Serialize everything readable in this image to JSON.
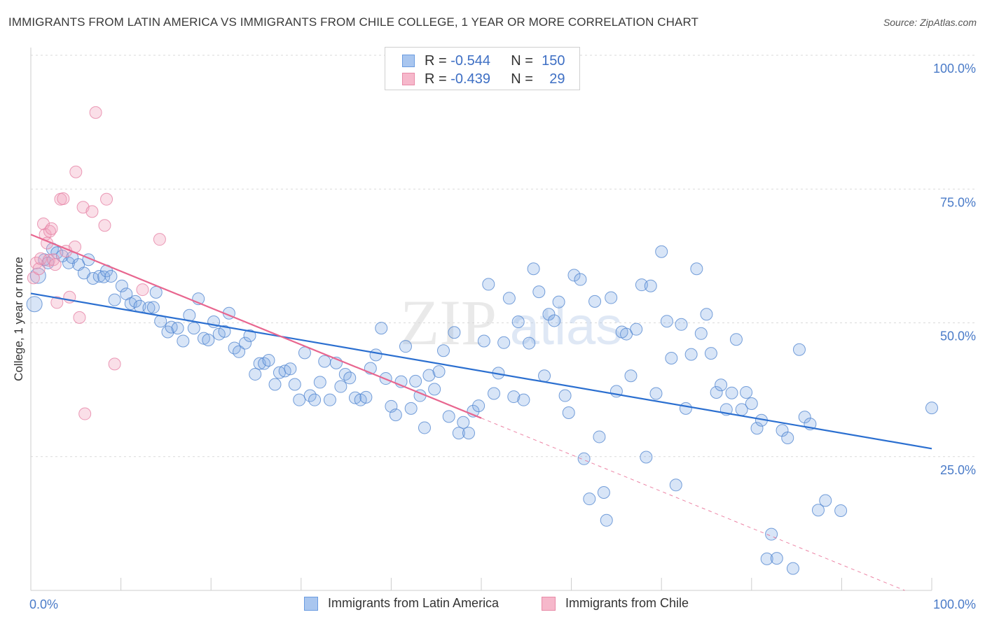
{
  "title": "IMMIGRANTS FROM LATIN AMERICA VS IMMIGRANTS FROM CHILE COLLEGE, 1 YEAR OR MORE CORRELATION CHART",
  "source": "Source: ZipAtlas.com",
  "watermark": {
    "zip": "ZIP",
    "atlas": "atlas"
  },
  "legend_top": [
    {
      "r_label": "R =",
      "r_value": "-0.544",
      "n_label": "N =",
      "n_value": "150",
      "color": "#a9c6ef",
      "stroke": "#6a9be0"
    },
    {
      "r_label": "R =",
      "r_value": "-0.439",
      "n_label": "N =",
      "n_value": "29",
      "color": "#f6b8cb",
      "stroke": "#e88aa7"
    }
  ],
  "chart_data": {
    "type": "scatter",
    "title": "IMMIGRANTS FROM LATIN AMERICA VS IMMIGRANTS FROM CHILE COLLEGE, 1 YEAR OR MORE CORRELATION CHART",
    "xlabel": "",
    "ylabel": "College, 1 year or more",
    "xlim": [
      0,
      100
    ],
    "ylim": [
      0,
      100
    ],
    "x_tick_labels": [
      "0.0%",
      "100.0%"
    ],
    "y_tick_labels": [
      "100.0%",
      "75.0%",
      "50.0%",
      "25.0%"
    ],
    "y_ticks": [
      100,
      75,
      50,
      25
    ],
    "grid": true,
    "legend_position": "bottom",
    "series": [
      {
        "name": "Immigrants from Latin America",
        "color": "#7fa9e4",
        "line_color": "#2b6fd0",
        "trend": {
          "x": [
            0,
            100
          ],
          "y": [
            55.5,
            26.5
          ]
        },
        "points": [
          [
            0.4,
            53.5
          ],
          [
            0.8,
            58.8
          ],
          [
            1.5,
            61.8
          ],
          [
            1.9,
            61.2
          ],
          [
            2.4,
            63.8
          ],
          [
            2.9,
            63.1
          ],
          [
            3.5,
            62.5
          ],
          [
            4.2,
            61.2
          ],
          [
            4.6,
            62.2
          ],
          [
            5.3,
            60.9
          ],
          [
            5.9,
            59.3
          ],
          [
            6.4,
            61.8
          ],
          [
            6.9,
            58.3
          ],
          [
            7.6,
            58.7
          ],
          [
            8.1,
            58.6
          ],
          [
            8.4,
            59.7
          ],
          [
            8.9,
            58.7
          ],
          [
            9.3,
            54.3
          ],
          [
            10.1,
            56.9
          ],
          [
            10.6,
            55.4
          ],
          [
            11.1,
            53.6
          ],
          [
            11.6,
            54.0
          ],
          [
            12.1,
            53.1
          ],
          [
            13.1,
            52.8
          ],
          [
            13.6,
            52.9
          ],
          [
            13.9,
            55.7
          ],
          [
            14.4,
            50.3
          ],
          [
            15.2,
            48.3
          ],
          [
            15.6,
            49.2
          ],
          [
            16.3,
            49.0
          ],
          [
            16.9,
            46.6
          ],
          [
            17.6,
            51.4
          ],
          [
            18.1,
            49.0
          ],
          [
            18.6,
            54.5
          ],
          [
            19.2,
            47.1
          ],
          [
            19.7,
            46.8
          ],
          [
            20.3,
            50.2
          ],
          [
            20.9,
            47.9
          ],
          [
            21.5,
            48.4
          ],
          [
            22.0,
            51.8
          ],
          [
            22.6,
            45.3
          ],
          [
            23.1,
            44.6
          ],
          [
            23.8,
            46.2
          ],
          [
            24.3,
            47.6
          ],
          [
            24.9,
            40.4
          ],
          [
            25.4,
            42.4
          ],
          [
            25.9,
            42.4
          ],
          [
            26.4,
            43.0
          ],
          [
            27.1,
            38.5
          ],
          [
            27.6,
            40.7
          ],
          [
            28.2,
            41.0
          ],
          [
            28.8,
            41.4
          ],
          [
            29.3,
            38.5
          ],
          [
            29.8,
            35.6
          ],
          [
            30.4,
            44.4
          ],
          [
            31.0,
            36.4
          ],
          [
            31.5,
            35.6
          ],
          [
            32.1,
            38.9
          ],
          [
            32.6,
            42.8
          ],
          [
            33.2,
            35.6
          ],
          [
            33.9,
            42.5
          ],
          [
            34.4,
            38.1
          ],
          [
            34.9,
            40.4
          ],
          [
            35.4,
            39.7
          ],
          [
            36.0,
            36.0
          ],
          [
            36.6,
            35.6
          ],
          [
            37.2,
            36.1
          ],
          [
            37.7,
            41.5
          ],
          [
            38.3,
            44.0
          ],
          [
            38.9,
            49.0
          ],
          [
            39.4,
            39.6
          ],
          [
            40.0,
            34.4
          ],
          [
            40.5,
            32.8
          ],
          [
            41.1,
            39.0
          ],
          [
            41.6,
            45.6
          ],
          [
            42.2,
            34.0
          ],
          [
            42.7,
            39.1
          ],
          [
            43.2,
            36.4
          ],
          [
            43.7,
            30.4
          ],
          [
            44.2,
            40.2
          ],
          [
            44.8,
            37.6
          ],
          [
            45.3,
            40.9
          ],
          [
            45.8,
            44.8
          ],
          [
            46.4,
            32.5
          ],
          [
            47.0,
            48.2
          ],
          [
            47.5,
            29.4
          ],
          [
            48.0,
            31.4
          ],
          [
            48.6,
            29.4
          ],
          [
            49.1,
            33.5
          ],
          [
            49.7,
            34.5
          ],
          [
            50.3,
            46.6
          ],
          [
            50.8,
            57.2
          ],
          [
            51.4,
            36.8
          ],
          [
            51.9,
            40.6
          ],
          [
            52.5,
            46.3
          ],
          [
            53.1,
            54.6
          ],
          [
            53.6,
            36.2
          ],
          [
            54.1,
            50.2
          ],
          [
            54.7,
            35.6
          ],
          [
            55.3,
            46.2
          ],
          [
            55.8,
            60.1
          ],
          [
            56.4,
            55.8
          ],
          [
            57.0,
            40.1
          ],
          [
            57.5,
            51.6
          ],
          [
            58.1,
            50.4
          ],
          [
            58.6,
            53.9
          ],
          [
            59.3,
            36.4
          ],
          [
            59.7,
            33.2
          ],
          [
            60.3,
            58.9
          ],
          [
            61.0,
            58.1
          ],
          [
            61.4,
            24.6
          ],
          [
            62.0,
            17.1
          ],
          [
            62.6,
            54.0
          ],
          [
            63.1,
            28.7
          ],
          [
            63.6,
            18.3
          ],
          [
            63.9,
            13.1
          ],
          [
            64.4,
            54.7
          ],
          [
            65.0,
            37.2
          ],
          [
            65.6,
            48.3
          ],
          [
            66.1,
            47.9
          ],
          [
            66.6,
            40.1
          ],
          [
            67.2,
            48.8
          ],
          [
            67.8,
            57.1
          ],
          [
            68.3,
            24.9
          ],
          [
            68.8,
            56.9
          ],
          [
            69.4,
            36.8
          ],
          [
            70.0,
            63.3
          ],
          [
            70.6,
            50.3
          ],
          [
            71.1,
            43.4
          ],
          [
            71.6,
            19.7
          ],
          [
            72.2,
            49.7
          ],
          [
            72.7,
            34.0
          ],
          [
            73.3,
            44.1
          ],
          [
            73.9,
            60.1
          ],
          [
            74.4,
            48.0
          ],
          [
            75.0,
            51.6
          ],
          [
            75.5,
            44.3
          ],
          [
            76.1,
            37.0
          ],
          [
            76.6,
            38.4
          ],
          [
            77.2,
            33.8
          ],
          [
            77.8,
            36.9
          ],
          [
            78.3,
            46.9
          ],
          [
            78.9,
            33.8
          ],
          [
            79.4,
            37.0
          ],
          [
            80.0,
            34.9
          ],
          [
            80.6,
            30.3
          ],
          [
            81.1,
            31.8
          ],
          [
            81.7,
            5.9
          ],
          [
            82.2,
            10.5
          ],
          [
            82.8,
            6.0
          ],
          [
            83.4,
            29.9
          ],
          [
            84.0,
            28.5
          ],
          [
            84.6,
            4.1
          ],
          [
            85.3,
            45.0
          ],
          [
            85.9,
            32.4
          ],
          [
            86.5,
            31.1
          ],
          [
            87.4,
            15.0
          ],
          [
            88.2,
            16.8
          ],
          [
            89.9,
            14.9
          ],
          [
            100.0,
            34.1
          ]
        ]
      },
      {
        "name": "Immigrants from Chile",
        "color": "#f2a3bd",
        "line_color": "#e8668f",
        "trend": {
          "x": [
            0,
            50
          ],
          "y": [
            66.5,
            32.2
          ]
        },
        "trend_dashed": {
          "x": [
            50,
            97
          ],
          "y": [
            32.2,
            0
          ]
        },
        "points": [
          [
            0.3,
            58.4
          ],
          [
            0.6,
            61.2
          ],
          [
            0.9,
            60.1
          ],
          [
            1.1,
            62.0
          ],
          [
            1.4,
            68.5
          ],
          [
            1.6,
            66.5
          ],
          [
            1.8,
            64.9
          ],
          [
            2.0,
            61.7
          ],
          [
            2.1,
            67.1
          ],
          [
            2.3,
            67.6
          ],
          [
            2.5,
            61.8
          ],
          [
            2.7,
            60.9
          ],
          [
            2.9,
            53.8
          ],
          [
            3.3,
            73.1
          ],
          [
            3.6,
            73.2
          ],
          [
            3.9,
            63.4
          ],
          [
            4.3,
            54.8
          ],
          [
            4.9,
            64.2
          ],
          [
            5.0,
            78.2
          ],
          [
            5.4,
            51.0
          ],
          [
            5.8,
            71.6
          ],
          [
            6.0,
            33.0
          ],
          [
            6.8,
            70.8
          ],
          [
            7.2,
            89.3
          ],
          [
            8.2,
            68.2
          ],
          [
            8.4,
            73.1
          ],
          [
            9.3,
            42.3
          ],
          [
            12.4,
            56.2
          ],
          [
            14.3,
            65.6
          ]
        ]
      }
    ]
  },
  "bottom_legend": [
    {
      "label": "Immigrants from Latin America",
      "color": "#a9c6ef",
      "stroke": "#6a9be0"
    },
    {
      "label": "Immigrants from Chile",
      "color": "#f6b8cb",
      "stroke": "#e88aa7"
    }
  ]
}
